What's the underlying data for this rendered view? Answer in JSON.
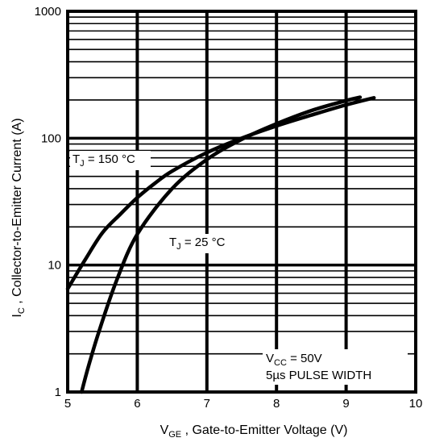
{
  "chart_data": {
    "type": "line",
    "xlabel_main": "V",
    "xlabel_sub": "GE",
    "xlabel_rest": " , Gate-to-Emitter Voltage (V)",
    "ylabel_main": "I",
    "ylabel_sub": "C",
    "ylabel_rest": " ,  Collector-to-Emitter Current (A)",
    "xlim": [
      5,
      10
    ],
    "ylim": [
      1,
      1000
    ],
    "y_scale": "log",
    "grid": true,
    "x_ticks": [
      "5",
      "6",
      "7",
      "8",
      "9",
      "10"
    ],
    "y_ticks": [
      "1",
      "10",
      "100",
      "1000"
    ],
    "series": [
      {
        "label_main": "T",
        "label_sub": "J",
        "label_rest": " = 150 °C",
        "x": [
          5.0,
          5.25,
          5.5,
          5.75,
          6.0,
          6.25,
          6.5,
          7.0,
          7.5,
          8.0,
          8.5,
          9.0,
          9.4
        ],
        "y": [
          6.5,
          11.0,
          18.0,
          25.0,
          34.0,
          44.0,
          55.0,
          77.0,
          100.0,
          125.0,
          152.0,
          183.0,
          208.0
        ]
      },
      {
        "label_main": "T",
        "label_sub": "J",
        "label_rest": " = 25 °C",
        "x": [
          5.2,
          5.3,
          5.45,
          5.7,
          6.0,
          6.5,
          7.0,
          7.5,
          8.0,
          8.5,
          9.0,
          9.2
        ],
        "y": [
          1.0,
          1.6,
          3.0,
          7.5,
          17.5,
          40.0,
          68.0,
          98.0,
          130.0,
          165.0,
          198.0,
          210.0
        ]
      }
    ],
    "annotation": {
      "line1_main": "V",
      "line1_sub": "CC",
      "line1_rest": " = 50V",
      "line2": "5µs PULSE WIDTH"
    }
  }
}
